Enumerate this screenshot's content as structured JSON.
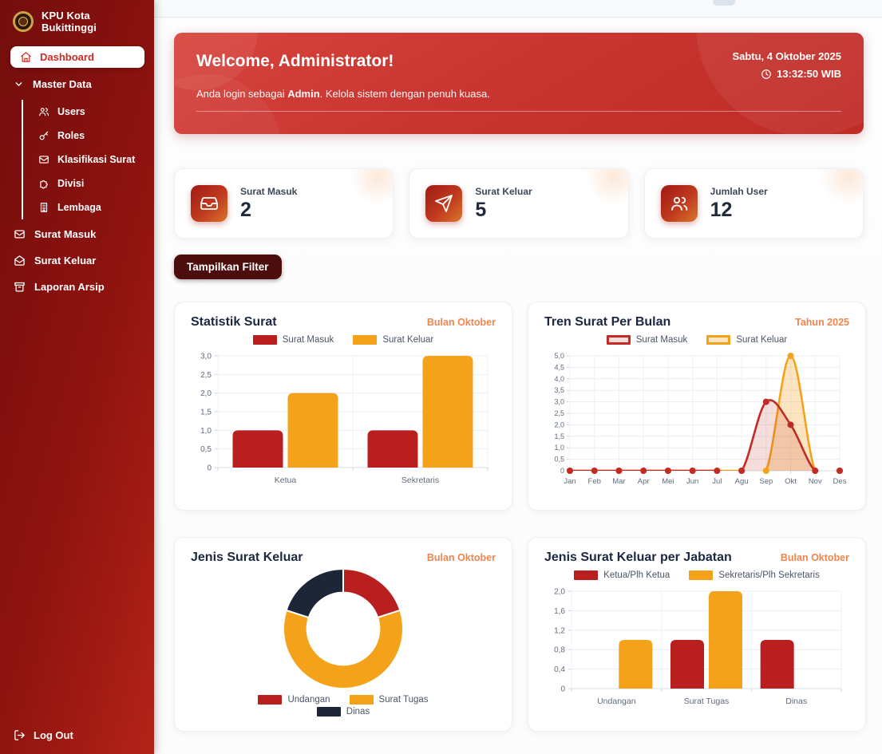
{
  "sidebar": {
    "brand": "KPU Kota Bukittinggi",
    "items": [
      {
        "label": "Dashboard",
        "active": true
      },
      {
        "label": "Master Data"
      },
      {
        "label": "Users"
      },
      {
        "label": "Roles"
      },
      {
        "label": "Klasifikasi Surat"
      },
      {
        "label": "Divisi"
      },
      {
        "label": "Lembaga"
      },
      {
        "label": "Surat Masuk"
      },
      {
        "label": "Surat Keluar"
      },
      {
        "label": "Laporan Arsip"
      }
    ],
    "logout": "Log Out"
  },
  "banner": {
    "title": "Welcome, Administrator!",
    "date": "Sabtu, 4 Oktober 2025",
    "time": "13:32:50 WIB",
    "subtitle_prefix": "Anda login sebagai ",
    "subtitle_role": "Admin",
    "subtitle_suffix": ". Kelola sistem dengan penuh kuasa."
  },
  "stats": [
    {
      "label": "Surat Masuk",
      "value": "2",
      "icon": "inbox-icon"
    },
    {
      "label": "Surat Keluar",
      "value": "5",
      "icon": "send-icon"
    },
    {
      "label": "Jumlah User",
      "value": "12",
      "icon": "users-icon"
    }
  ],
  "filter_button_label": "Tampilkan Filter",
  "colors": {
    "series_red": "#b91f1f",
    "series_orange": "#f5a21b",
    "series_navy": "#1d2637",
    "badge_orange": "#f0854e"
  },
  "chart_data": [
    {
      "type": "bar",
      "title": "Statistik Surat",
      "badge": "Bulan Oktober",
      "categories": [
        "Ketua",
        "Sekretaris"
      ],
      "series": [
        {
          "name": "Surat Masuk",
          "color": "#b91f1f",
          "values": [
            1,
            1
          ]
        },
        {
          "name": "Surat Keluar",
          "color": "#f5a21b",
          "values": [
            2,
            3
          ]
        }
      ],
      "ylim": [
        0,
        3
      ],
      "ytick_step": 0.5,
      "grid": true,
      "legend_position": "top",
      "legend_style": "solid"
    },
    {
      "type": "line",
      "title": "Tren Surat Per Bulan",
      "badge": "Tahun 2025",
      "x": [
        "Jan",
        "Feb",
        "Mar",
        "Apr",
        "Mei",
        "Jun",
        "Jul",
        "Agu",
        "Sep",
        "Okt",
        "Nov",
        "Des"
      ],
      "series": [
        {
          "name": "Surat Masuk",
          "color": "#c22a25",
          "fill": "rgba(194,42,37,0.16)",
          "values": [
            0,
            0,
            0,
            0,
            0,
            0,
            0,
            0,
            3,
            2,
            0,
            0
          ]
        },
        {
          "name": "Surat Keluar",
          "color": "#f5a21b",
          "fill": "rgba(245,162,27,0.28)",
          "values": [
            0,
            0,
            0,
            0,
            0,
            0,
            0,
            0,
            0,
            5,
            0,
            0
          ]
        }
      ],
      "ylim": [
        0,
        5
      ],
      "ytick_step": 0.5,
      "grid": true,
      "legend_position": "top",
      "legend_style": "outlined"
    },
    {
      "type": "pie",
      "title": "Jenis Surat Keluar",
      "badge": "Bulan Oktober",
      "labels": [
        "Undangan",
        "Surat Tugas",
        "Dinas"
      ],
      "values": [
        1,
        3,
        1
      ],
      "colors": [
        "#b91f1f",
        "#f5a21b",
        "#1d2637"
      ],
      "donut": true,
      "legend_position": "bottom",
      "legend_style": "solid"
    },
    {
      "type": "bar",
      "title": "Jenis Surat Keluar per Jabatan",
      "badge": "Bulan Oktober",
      "categories": [
        "Undangan",
        "Surat Tugas",
        "Dinas"
      ],
      "series": [
        {
          "name": "Ketua/Plh Ketua",
          "color": "#b91f1f",
          "values": [
            0,
            1,
            1
          ]
        },
        {
          "name": "Sekretaris/Plh Sekretaris",
          "color": "#f5a21b",
          "values": [
            1,
            2,
            0
          ]
        }
      ],
      "ylim": [
        0,
        2
      ],
      "ytick_step": 0.4,
      "grid": true,
      "legend_position": "top",
      "legend_style": "solid"
    }
  ]
}
